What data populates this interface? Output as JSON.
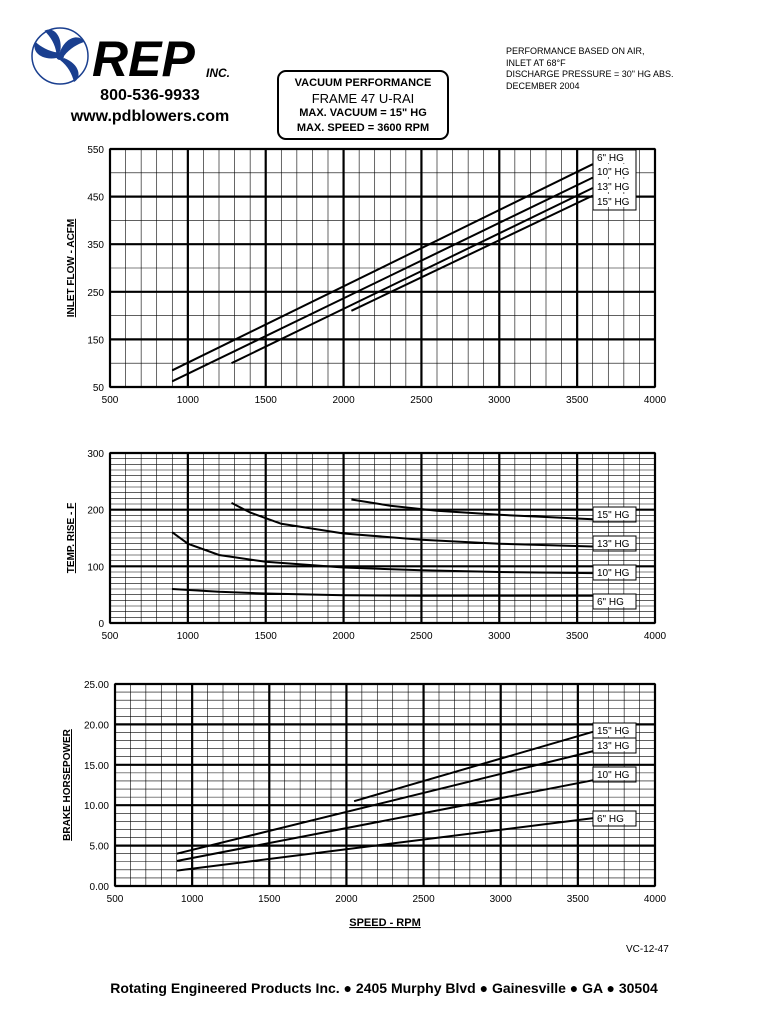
{
  "header": {
    "brand": "REP",
    "brand_suffix": "INC.",
    "phone": "800-536-9933",
    "website": "www.pdblowers.com",
    "title_lines": [
      "VACUUM PERFORMANCE",
      "FRAME 47 U-RAI",
      "MAX. VACUUM = 15\" HG",
      "MAX. SPEED = 3600 RPM"
    ],
    "notes": [
      "PERFORMANCE BASED ON  AIR,",
      " INLET AT 68°F",
      "DISCHARGE PRESSURE = 30\" HG ABS.",
      "DECEMBER 2004"
    ]
  },
  "chart_data": [
    {
      "type": "line",
      "ylabel": "INLET FLOW - ACFM",
      "xlabel": "",
      "xlim": [
        500,
        4000
      ],
      "ylim": [
        50,
        550
      ],
      "x_ticks": [
        500,
        1000,
        1500,
        2000,
        2500,
        3000,
        3500,
        4000
      ],
      "y_ticks": [
        50,
        150,
        250,
        350,
        450,
        550
      ],
      "y_tick_labels": [
        "50",
        "150",
        "250",
        "350",
        "450",
        "550"
      ],
      "legend": [
        "6\" HG",
        "10\" HG",
        "13\" HG",
        "15\" HG"
      ],
      "legend_position": "top-right",
      "series": [
        {
          "name": "6\" HG",
          "x": [
            900,
            3600
          ],
          "y": [
            85,
            518
          ]
        },
        {
          "name": "10\" HG",
          "x": [
            900,
            3600
          ],
          "y": [
            62,
            490
          ]
        },
        {
          "name": "13\" HG",
          "x": [
            1280,
            3600
          ],
          "y": [
            100,
            468
          ]
        },
        {
          "name": "15\" HG",
          "x": [
            2050,
            3600
          ],
          "y": [
            210,
            452
          ]
        }
      ]
    },
    {
      "type": "line",
      "ylabel": "TEMP. RISE - F",
      "xlabel": "",
      "xlim": [
        500,
        4000
      ],
      "ylim": [
        0,
        300
      ],
      "x_ticks": [
        500,
        1000,
        1500,
        2000,
        2500,
        3000,
        3500,
        4000
      ],
      "y_ticks": [
        0,
        100,
        200,
        300
      ],
      "y_tick_labels": [
        "0",
        "100",
        "200",
        "300"
      ],
      "legend": [
        "15\" HG",
        "13\" HG",
        "10\" HG",
        "6\" HG"
      ],
      "legend_position": "right",
      "series": [
        {
          "name": "6\" HG",
          "x": [
            900,
            1200,
            1500,
            2000,
            2500,
            3000,
            3600
          ],
          "y": [
            60,
            55,
            52,
            49,
            48,
            48,
            48
          ]
        },
        {
          "name": "10\" HG",
          "x": [
            900,
            1000,
            1200,
            1500,
            2000,
            2500,
            3000,
            3600
          ],
          "y": [
            160,
            140,
            120,
            108,
            98,
            93,
            90,
            88
          ]
        },
        {
          "name": "13\" HG",
          "x": [
            1280,
            1400,
            1600,
            2000,
            2500,
            3000,
            3600
          ],
          "y": [
            212,
            195,
            175,
            158,
            147,
            140,
            135
          ]
        },
        {
          "name": "15\" HG",
          "x": [
            2050,
            2300,
            2600,
            3000,
            3300,
            3600
          ],
          "y": [
            218,
            207,
            198,
            191,
            187,
            183
          ]
        }
      ]
    },
    {
      "type": "line",
      "ylabel": "BRAKE HORSEPOWER",
      "xlabel": "SPEED - RPM",
      "xlim": [
        500,
        4000
      ],
      "ylim": [
        0,
        25
      ],
      "x_ticks": [
        500,
        1000,
        1500,
        2000,
        2500,
        3000,
        3500,
        4000
      ],
      "y_ticks": [
        0,
        5,
        10,
        15,
        20,
        25
      ],
      "y_tick_labels": [
        "0.00",
        "5.00",
        "10.00",
        "15.00",
        "20.00",
        "25.00"
      ],
      "legend": [
        "15\" HG",
        "13\" HG",
        "10\" HG",
        "6\" HG"
      ],
      "legend_position": "right",
      "series": [
        {
          "name": "6\" HG",
          "x": [
            900,
            3600
          ],
          "y": [
            1.9,
            8.4
          ]
        },
        {
          "name": "10\" HG",
          "x": [
            900,
            3600
          ],
          "y": [
            3.1,
            13.1
          ]
        },
        {
          "name": "13\" HG",
          "x": [
            900,
            3600
          ],
          "y": [
            4.0,
            16.7
          ]
        },
        {
          "name": "15\" HG",
          "x": [
            2050,
            3600
          ],
          "y": [
            10.5,
            19.1
          ]
        }
      ]
    }
  ],
  "footer": {
    "code": "VC-12-47",
    "company": "Rotating Engineered Products Inc. ● 2405 Murphy Blvd ● Gainesville ● GA ● 30504"
  }
}
